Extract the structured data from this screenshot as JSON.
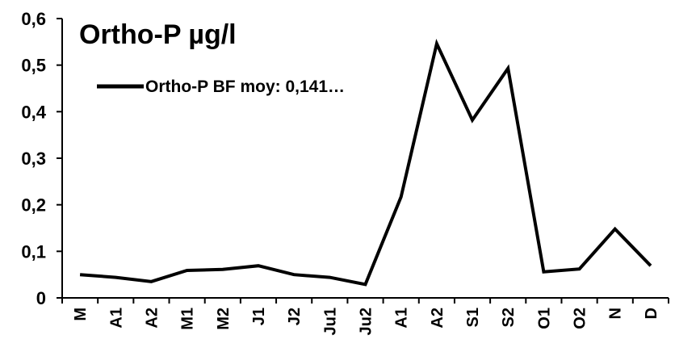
{
  "chart_data": {
    "type": "line",
    "title": "Ortho-P µg/l",
    "xlabel": "",
    "ylabel": "",
    "categories": [
      "M",
      "A1",
      "A2",
      "M1",
      "M2",
      "J1",
      "J2",
      "Ju1",
      "Ju2",
      "A1",
      "A2",
      "S1",
      "S2",
      "O1",
      "O2",
      "N",
      "D"
    ],
    "series": [
      {
        "name": "Ortho-P BF moy: 0,141…",
        "values": [
          0.05,
          0.044,
          0.035,
          0.059,
          0.061,
          0.069,
          0.05,
          0.044,
          0.029,
          0.217,
          0.546,
          0.382,
          0.493,
          0.056,
          0.062,
          0.148,
          0.069
        ],
        "color": "#000000"
      }
    ],
    "ylim": [
      0,
      0.6
    ],
    "yticks": [
      0,
      0.1,
      0.2,
      0.3,
      0.4,
      0.5,
      0.6
    ],
    "ytick_labels": [
      "0",
      "0,1",
      "0,2",
      "0,3",
      "0,4",
      "0,5",
      "0,6"
    ],
    "grid": false,
    "legend_position": "top-left"
  }
}
